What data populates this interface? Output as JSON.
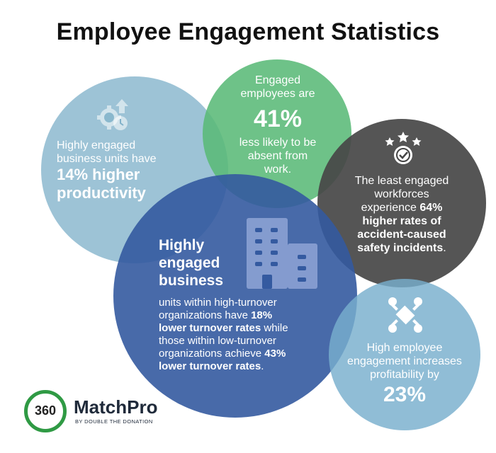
{
  "title": "Employee Engagement Statistics",
  "colors": {
    "light_blue_circle": "#82B2CA",
    "green_circle": "#5ABA78",
    "dark_circle": "#464646",
    "blue_circle": "#345AA0",
    "teal_circle": "#78AFCD",
    "logo_green": "#2F9A44"
  },
  "stats": {
    "productivity": {
      "icon": "gear-arrow-icon",
      "line1": "Highly engaged",
      "line2": "business units have",
      "highlight1": "14% higher",
      "highlight2": "productivity"
    },
    "absence": {
      "line1": "Engaged",
      "line2": "employees are",
      "value": "41%",
      "line3": "less likely to be",
      "line4": "absent from",
      "line5": "work."
    },
    "safety": {
      "icon": "award-stars-icon",
      "line1": "The least engaged",
      "line2": "workforces",
      "line3_pre": "experience ",
      "line3_bold": "64%",
      "line4": "higher rates of",
      "line5": "accident-caused",
      "line6_bold": "safety incidents",
      "line6_end": "."
    },
    "turnover": {
      "icon": "buildings-icon",
      "head1": "Highly",
      "head2": "engaged",
      "head3": "business",
      "body1": "units within high-turnover",
      "body2_pre": "organizations have ",
      "body2_bold": "18%",
      "body3_bold": "lower turnover rates",
      "body3_end": " while",
      "body4": "those within low-turnover",
      "body5_pre": "organizations achieve ",
      "body5_bold": "43%",
      "body6_bold": "lower turnover rates",
      "body6_end": "."
    },
    "profitability": {
      "icon": "teamwork-icon",
      "line1": "High employee",
      "line2": "engagement increases",
      "line3": "profitability by",
      "value": "23%"
    }
  },
  "logo": {
    "number": "360",
    "brand": "MatchPro",
    "tagline": "BY DOUBLE THE DONATION"
  }
}
